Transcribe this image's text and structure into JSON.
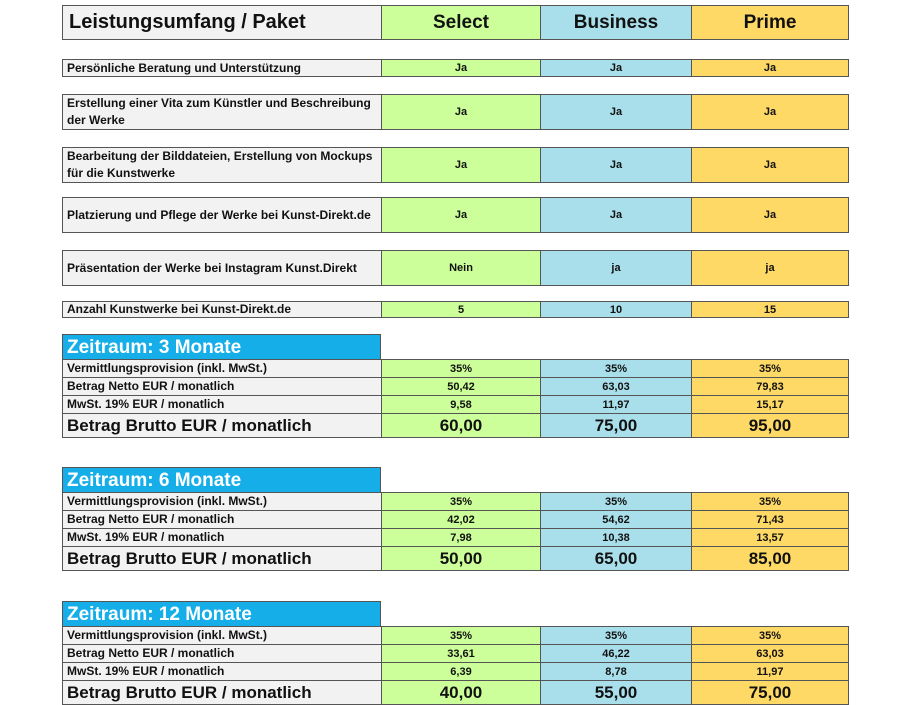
{
  "header": {
    "label": "Leistungsumfang / Paket",
    "select": "Select",
    "business": "Business",
    "prime": "Prime"
  },
  "features": [
    {
      "label": "Persönliche Beratung und Unterstützung",
      "select": "Ja",
      "business": "Ja",
      "prime": "Ja"
    },
    {
      "label": "Erstellung einer Vita zum Künstler und Beschreibung der Werke",
      "select": "Ja",
      "business": "Ja",
      "prime": "Ja"
    },
    {
      "label": "Bearbeitung der Bilddateien, Erstellung von Mockups für die Kunstwerke",
      "select": "Ja",
      "business": "Ja",
      "prime": "Ja"
    },
    {
      "label": "Platzierung und Pflege der Werke bei Kunst-Direkt.de",
      "select": "Ja",
      "business": "Ja",
      "prime": "Ja"
    },
    {
      "label": "Präsentation der Werke bei Instagram Kunst.Direkt",
      "select": "Nein",
      "business": "ja",
      "prime": "ja"
    },
    {
      "label": "Anzahl Kunstwerke bei Kunst-Direkt.de",
      "select": "5",
      "business": "10",
      "prime": "15"
    }
  ],
  "periods": [
    {
      "title": "Zeitraum: 3 Monate",
      "rows": [
        {
          "label": "Vermittlungsprovision (inkl. MwSt.)",
          "select": "35%",
          "business": "35%",
          "prime": "35%"
        },
        {
          "label": "Betrag Netto EUR / monatlich",
          "select": "50,42",
          "business": "63,03",
          "prime": "79,83"
        },
        {
          "label": "MwSt. 19% EUR / monatlich",
          "select": "9,58",
          "business": "11,97",
          "prime": "15,17"
        },
        {
          "label": "Betrag Brutto EUR / monatlich",
          "select": "60,00",
          "business": "75,00",
          "prime": "95,00"
        }
      ]
    },
    {
      "title": "Zeitraum: 6 Monate",
      "rows": [
        {
          "label": "Vermittlungsprovision (inkl. MwSt.)",
          "select": "35%",
          "business": "35%",
          "prime": "35%"
        },
        {
          "label": "Betrag Netto EUR / monatlich",
          "select": "42,02",
          "business": "54,62",
          "prime": "71,43"
        },
        {
          "label": "MwSt. 19% EUR / monatlich",
          "select": "7,98",
          "business": "10,38",
          "prime": "13,57"
        },
        {
          "label": "Betrag Brutto EUR / monatlich",
          "select": "50,00",
          "business": "65,00",
          "prime": "85,00"
        }
      ]
    },
    {
      "title": "Zeitraum: 12 Monate",
      "rows": [
        {
          "label": "Vermittlungsprovision (inkl. MwSt.)",
          "select": "35%",
          "business": "35%",
          "prime": "35%"
        },
        {
          "label": "Betrag Netto EUR / monatlich",
          "select": "33,61",
          "business": "46,22",
          "prime": "63,03"
        },
        {
          "label": "MwSt. 19% EUR / monatlich",
          "select": "6,39",
          "business": "8,78",
          "prime": "11,97"
        },
        {
          "label": "Betrag Brutto EUR / monatlich",
          "select": "40,00",
          "business": "55,00",
          "prime": "75,00"
        }
      ]
    }
  ]
}
